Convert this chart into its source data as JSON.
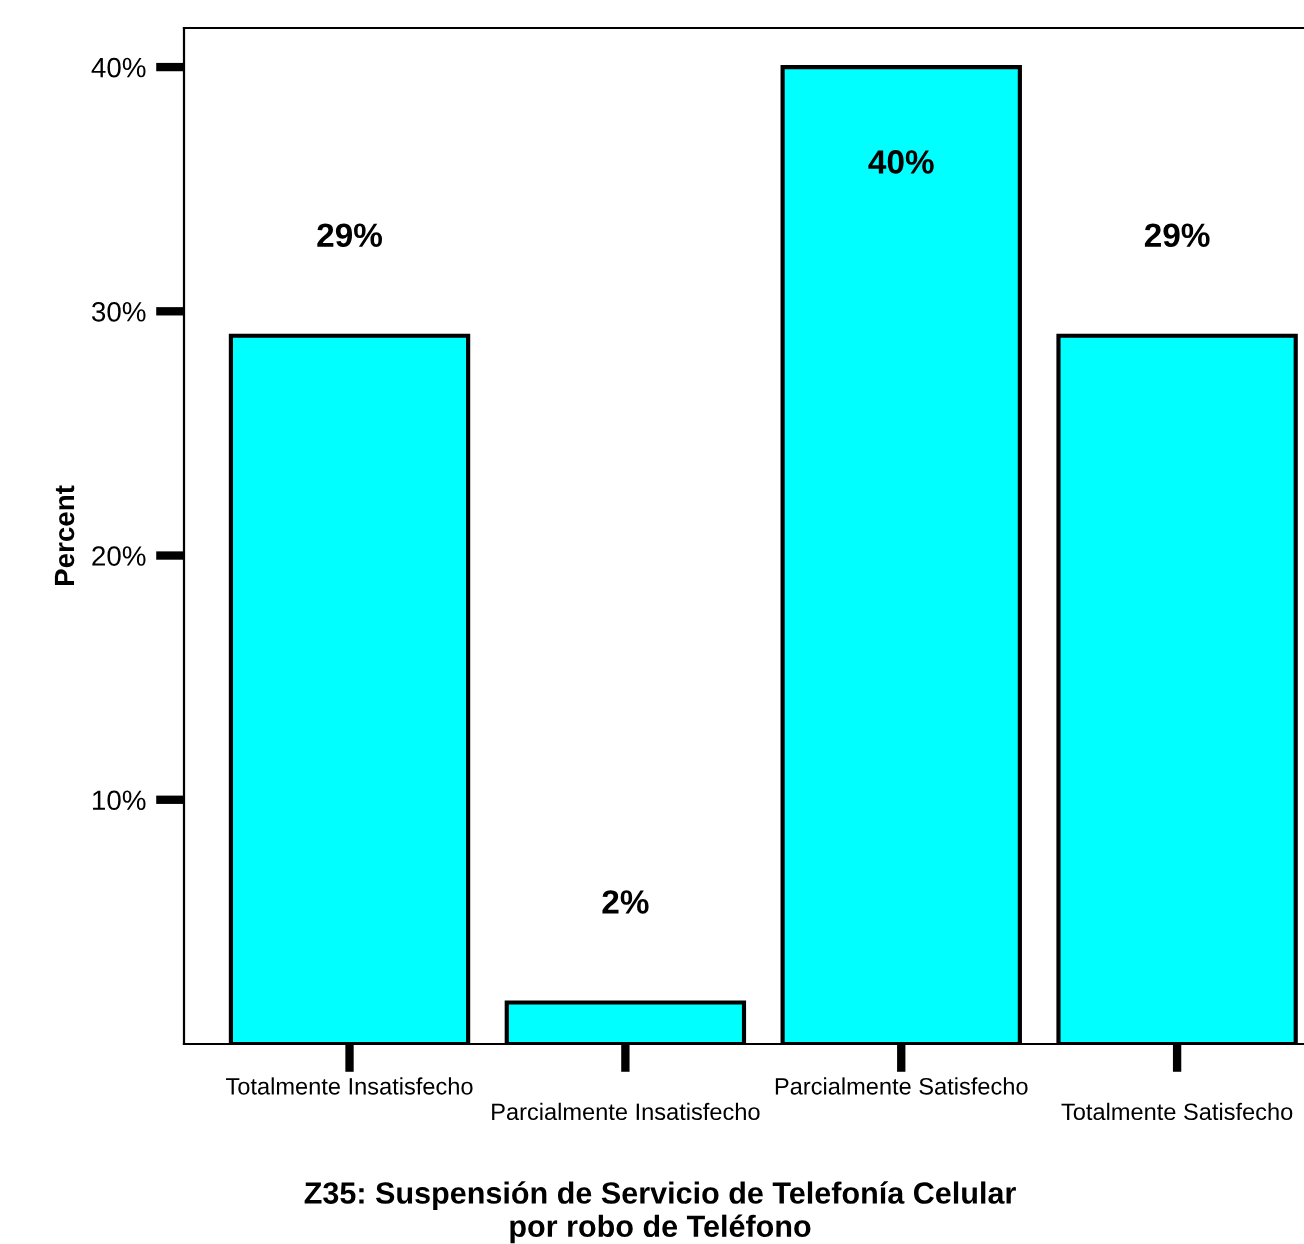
{
  "chart_data": {
    "type": "bar",
    "xlabel": "Z35: Suspensión de Servicio de Telefonía Celular\npor robo de Teléfono",
    "ylabel": "Percent",
    "categories": [
      "Totalmente Insatisfecho",
      "Parcialmente Insatisfecho",
      "Parcialmente Satisfecho",
      "Totalmente Satisfecho"
    ],
    "values": [
      29,
      1.7,
      40,
      29
    ],
    "value_labels": [
      "29%",
      "2%",
      "40%",
      "29%"
    ],
    "color": "#00ffff",
    "ylim": [
      0,
      41.6
    ],
    "yticks": [
      {
        "value": 10,
        "label": "10%"
      },
      {
        "value": 20,
        "label": "20%"
      },
      {
        "value": 30,
        "label": "30%"
      },
      {
        "value": 40,
        "label": "40%"
      }
    ],
    "grid": false
  }
}
